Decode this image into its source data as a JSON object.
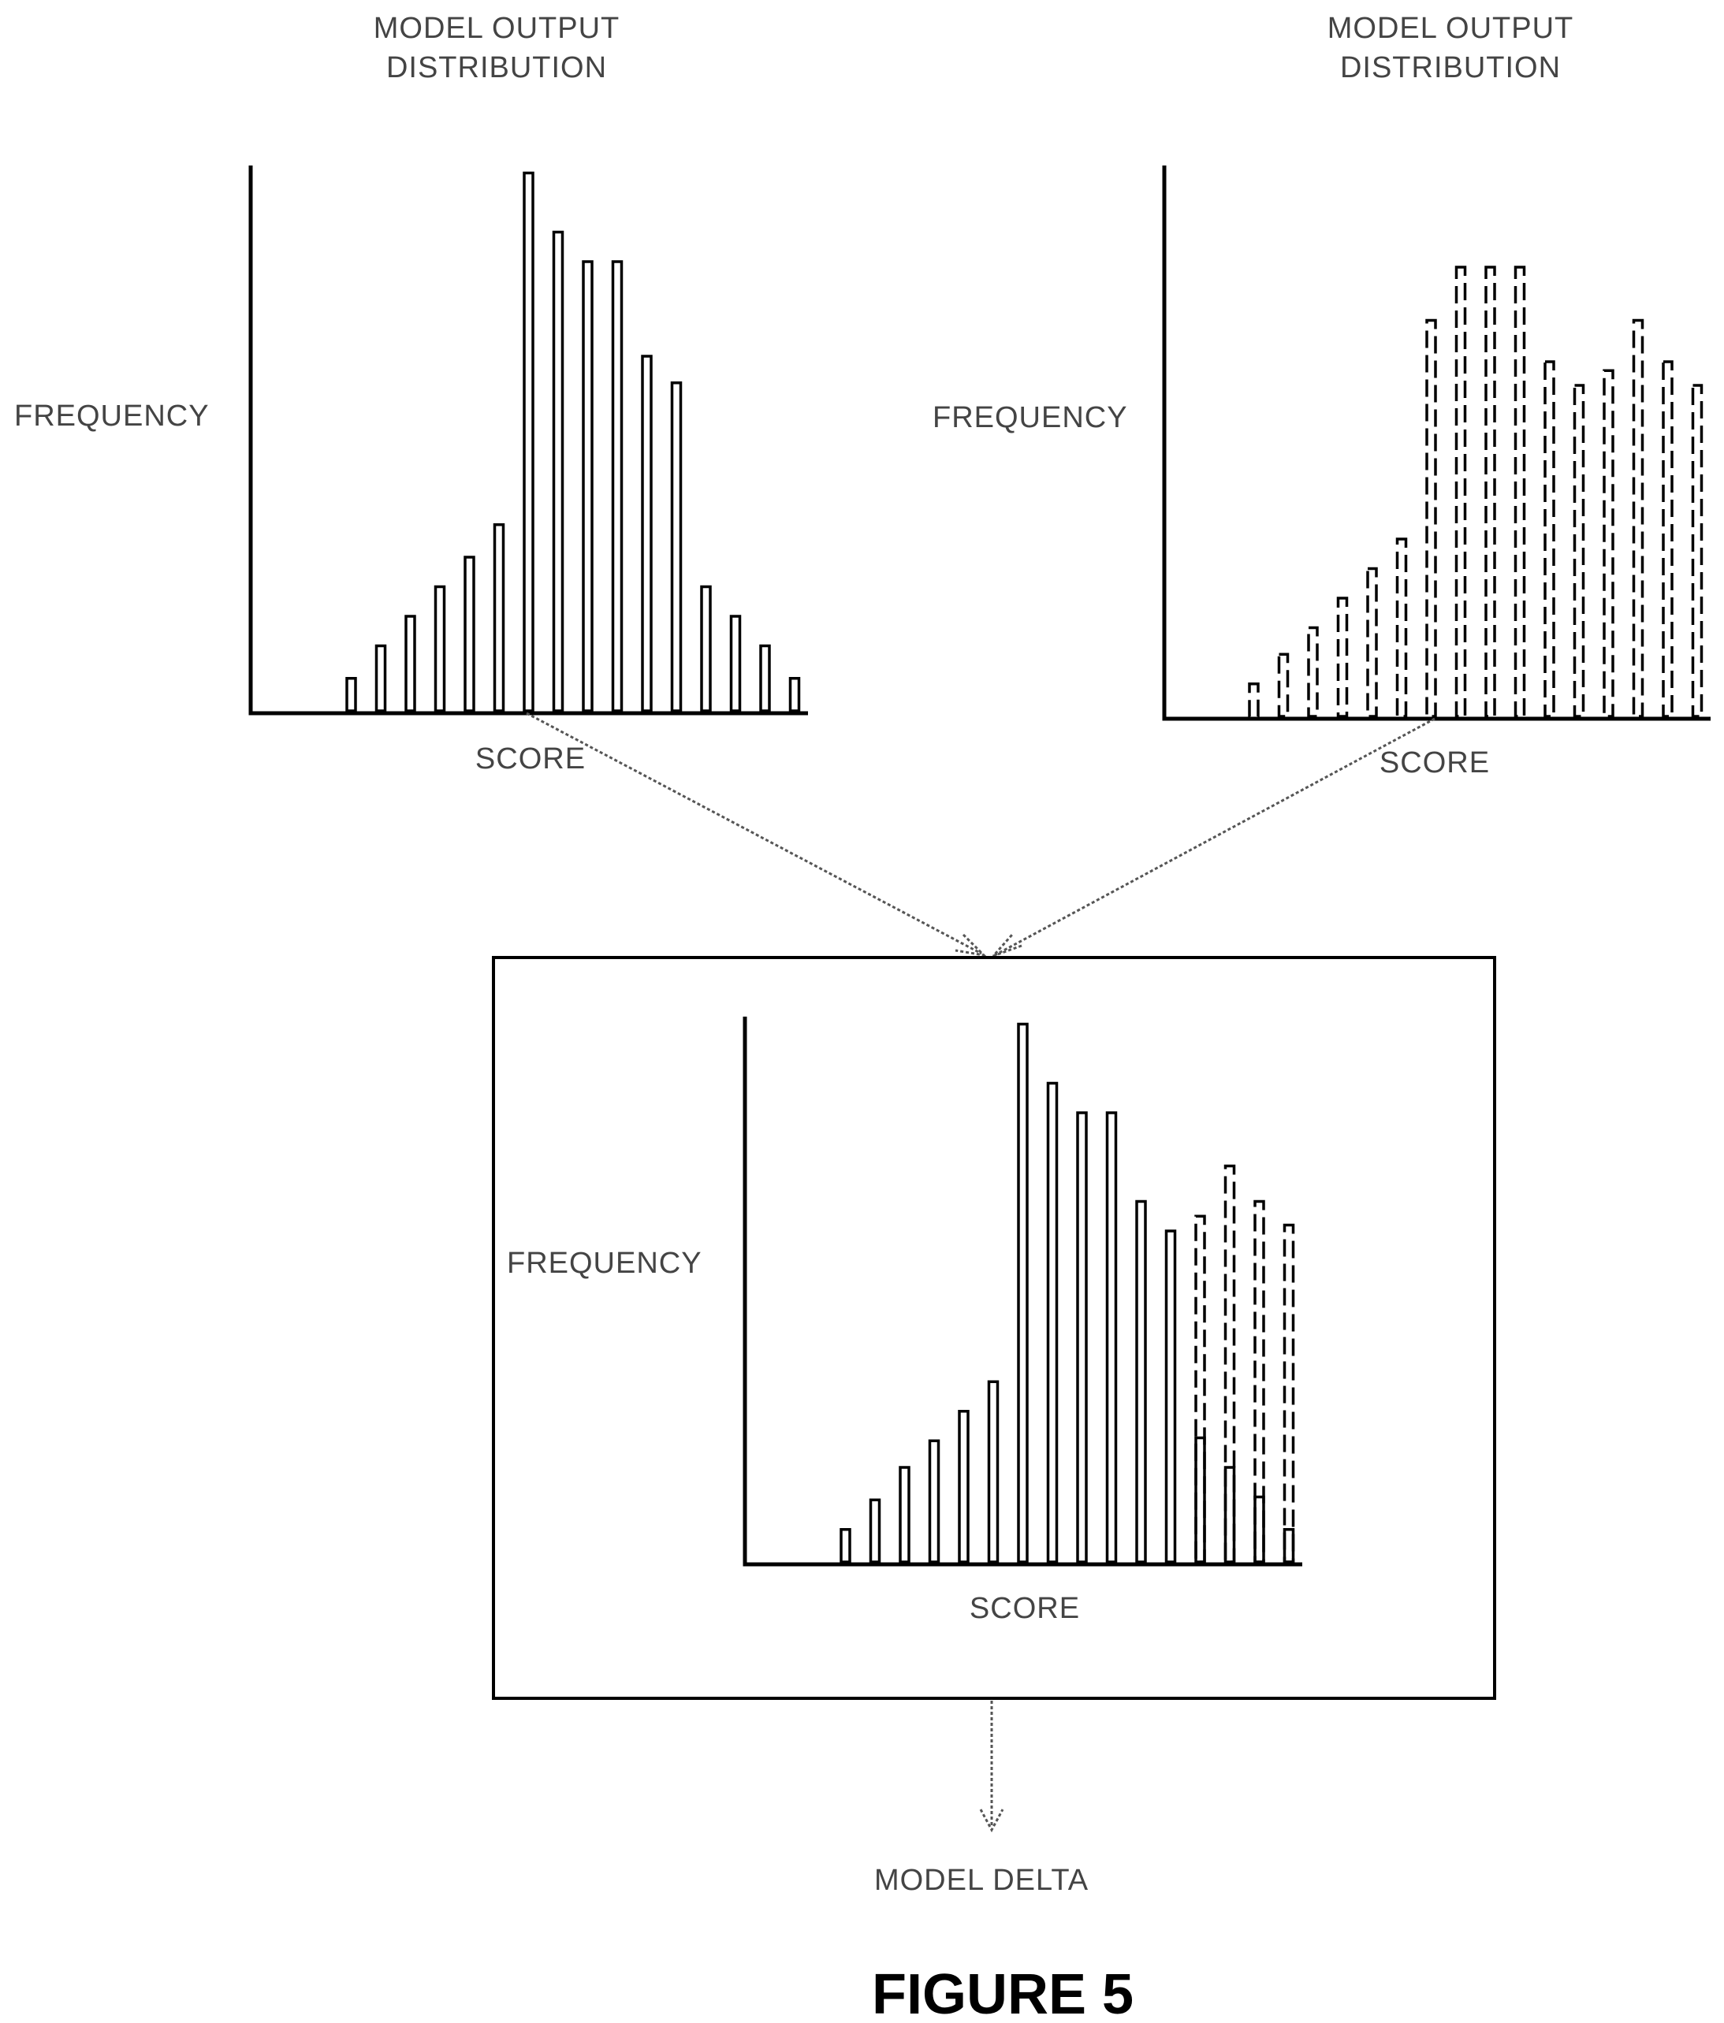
{
  "top_left": {
    "title_lines": [
      "MODEL OUTPUT",
      "DISTRIBUTION"
    ],
    "ylabel": "FREQUENCY",
    "xlabel": "SCORE"
  },
  "top_right": {
    "title_lines": [
      "MODEL OUTPUT",
      "DISTRIBUTION"
    ],
    "ylabel": "FREQUENCY",
    "xlabel": "SCORE"
  },
  "combined": {
    "ylabel": "FREQUENCY",
    "xlabel": "SCORE"
  },
  "output_label": "MODEL DELTA",
  "caption": "FIGURE 5",
  "chart_data": [
    {
      "type": "bar",
      "style": "solid",
      "values": [
        5.5,
        11,
        16,
        21,
        26,
        31.5,
        91,
        81,
        76,
        76,
        60,
        55.5,
        21,
        16,
        11,
        5.5
      ]
    },
    {
      "type": "bar",
      "style": "dashed",
      "values": [
        5.5,
        10.5,
        15,
        20,
        25,
        30,
        67,
        76,
        76,
        76,
        60,
        56,
        58.5,
        67,
        60,
        56
      ]
    },
    {
      "type": "bar",
      "series": [
        {
          "style": "solid",
          "values": [
            5.5,
            10.5,
            16,
            20.5,
            25.5,
            30.5,
            91,
            81,
            76,
            76,
            61,
            56,
            21,
            16,
            11,
            5.5
          ]
        },
        {
          "style": "dashed",
          "values": [
            null,
            null,
            null,
            null,
            null,
            null,
            null,
            null,
            null,
            null,
            null,
            null,
            58.5,
            67,
            61,
            57
          ]
        }
      ]
    }
  ]
}
